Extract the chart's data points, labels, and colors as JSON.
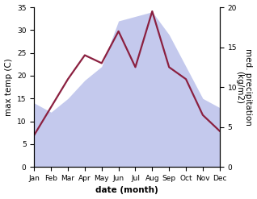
{
  "months": [
    "Jan",
    "Feb",
    "Mar",
    "Apr",
    "May",
    "Jun",
    "Jul",
    "Aug",
    "Sep",
    "Oct",
    "Nov",
    "Dec"
  ],
  "max_temp": [
    14,
    12,
    15,
    19,
    22,
    32,
    33,
    34,
    29,
    22,
    15,
    13
  ],
  "med_precip": [
    4.0,
    7.5,
    11.0,
    14.0,
    13.0,
    17.0,
    12.5,
    19.5,
    12.5,
    11.0,
    6.5,
    4.5
  ],
  "temp_ylim": [
    0,
    35
  ],
  "precip_ylim": [
    0,
    20
  ],
  "temp_yticks": [
    0,
    5,
    10,
    15,
    20,
    25,
    30,
    35
  ],
  "precip_yticks": [
    0,
    5,
    10,
    15,
    20
  ],
  "fill_color": "#b0b8e8",
  "fill_alpha": 0.75,
  "line_color": "#8b2040",
  "line_width": 1.6,
  "ylabel_left": "max temp (C)",
  "ylabel_right": "med. precipitation\n(kg/m2)",
  "xlabel": "date (month)",
  "background_color": "#ffffff",
  "label_fontsize": 7.5,
  "tick_fontsize": 6.5
}
